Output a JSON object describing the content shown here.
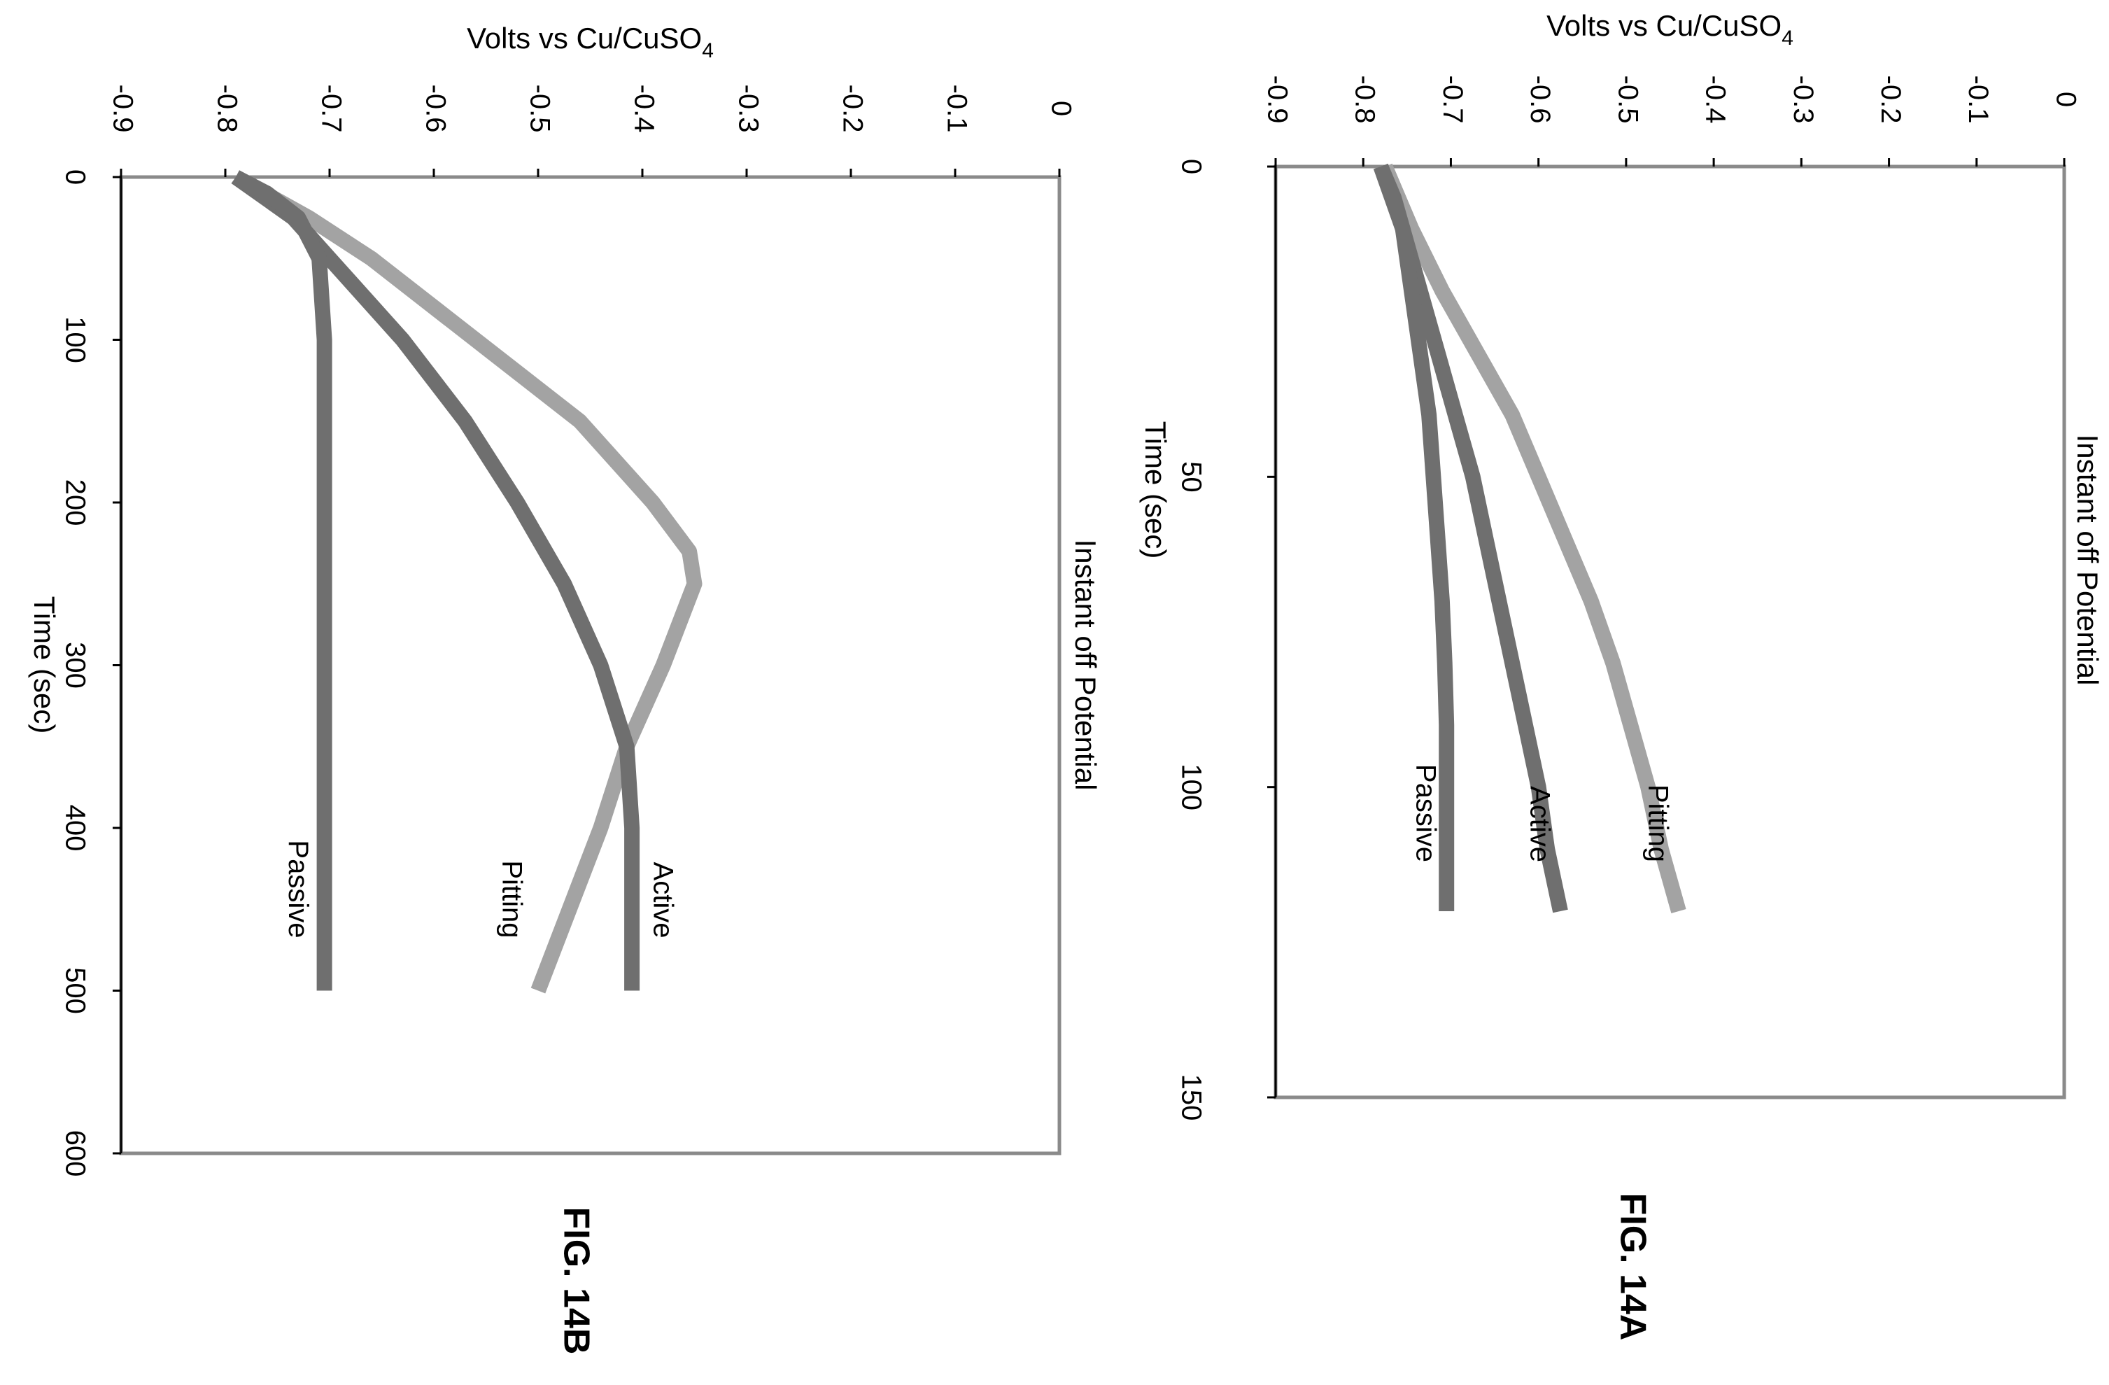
{
  "chart_data": [
    {
      "figure_label": "FIG. 14A",
      "type": "line",
      "title": "Instant off Potential",
      "xlabel": "Time (sec)",
      "ylabel": "Volts vs Cu/CuSO",
      "ylabel_subscript": "4",
      "xlim": [
        0,
        150
      ],
      "ylim": [
        -0.9,
        0
      ],
      "xticks": [
        0,
        50,
        100,
        150
      ],
      "xtick_labels": [
        "0",
        "50",
        "100",
        "150"
      ],
      "yticks": [
        -0.9,
        -0.8,
        -0.7,
        -0.6,
        -0.5,
        -0.4,
        -0.3,
        -0.2,
        -0.1,
        0
      ],
      "ytick_labels": [
        "-0.9",
        "-0.8",
        "-0.7",
        "-0.6",
        "-0.5",
        "-0.4",
        "-0.3",
        "-0.2",
        "-0.1",
        "0"
      ],
      "grid": false,
      "series": [
        {
          "name": "Pitting",
          "color": "#a3a3a3",
          "x": [
            0,
            10,
            20,
            30,
            40,
            50,
            60,
            70,
            80,
            90,
            100,
            110,
            120
          ],
          "y": [
            -0.775,
            -0.745,
            -0.71,
            -0.67,
            -0.63,
            -0.6,
            -0.57,
            -0.54,
            -0.515,
            -0.495,
            -0.475,
            -0.46,
            -0.44
          ]
        },
        {
          "name": "Active",
          "color": "#6f6f6f",
          "x": [
            0,
            10,
            20,
            30,
            40,
            50,
            60,
            70,
            80,
            90,
            100,
            110,
            120
          ],
          "y": [
            -0.78,
            -0.755,
            -0.735,
            -0.715,
            -0.695,
            -0.675,
            -0.66,
            -0.645,
            -0.63,
            -0.615,
            -0.6,
            -0.59,
            -0.575
          ]
        },
        {
          "name": "Passive",
          "color": "#6f6f6f",
          "x": [
            0,
            5,
            10,
            20,
            30,
            40,
            50,
            60,
            70,
            80,
            90,
            100,
            110,
            120
          ],
          "y": [
            -0.78,
            -0.765,
            -0.755,
            -0.745,
            -0.735,
            -0.725,
            -0.72,
            -0.715,
            -0.71,
            -0.707,
            -0.705,
            -0.705,
            -0.705,
            -0.705
          ]
        }
      ]
    },
    {
      "figure_label": "FIG. 14B",
      "type": "line",
      "title": "Instant off Potential",
      "xlabel": "Time (sec)",
      "ylabel": "Volts vs Cu/CuSO",
      "ylabel_subscript": "4",
      "xlim": [
        0,
        600
      ],
      "ylim": [
        -0.9,
        0
      ],
      "xticks": [
        0,
        100,
        200,
        300,
        400,
        500,
        600
      ],
      "xtick_labels": [
        "0",
        "100",
        "200",
        "300",
        "400",
        "500",
        "600"
      ],
      "yticks": [
        -0.9,
        -0.8,
        -0.7,
        -0.6,
        -0.5,
        -0.4,
        -0.3,
        -0.2,
        -0.1,
        0
      ],
      "ytick_labels": [
        "-0.9",
        "-0.8",
        "-0.7",
        "-0.6",
        "-0.5",
        "-0.4",
        "-0.3",
        "-0.2",
        "-0.1",
        "0"
      ],
      "grid": false,
      "series": [
        {
          "name": "Pitting",
          "color": "#a3a3a3",
          "x": [
            0,
            25,
            50,
            100,
            150,
            200,
            230,
            250,
            300,
            350,
            400,
            450,
            500
          ],
          "y": [
            -0.79,
            -0.72,
            -0.66,
            -0.56,
            -0.46,
            -0.39,
            -0.355,
            -0.35,
            -0.38,
            -0.415,
            -0.44,
            -0.47,
            -0.5
          ]
        },
        {
          "name": "Active",
          "color": "#6f6f6f",
          "x": [
            0,
            25,
            50,
            100,
            150,
            200,
            250,
            300,
            350,
            400,
            450,
            500
          ],
          "y": [
            -0.79,
            -0.735,
            -0.7,
            -0.63,
            -0.57,
            -0.52,
            -0.475,
            -0.44,
            -0.415,
            -0.41,
            -0.41,
            -0.41
          ]
        },
        {
          "name": "Passive",
          "color": "#6f6f6f",
          "x": [
            0,
            10,
            25,
            50,
            100,
            200,
            300,
            400,
            500
          ],
          "y": [
            -0.79,
            -0.76,
            -0.73,
            -0.71,
            -0.705,
            -0.705,
            -0.705,
            -0.705,
            -0.705
          ]
        }
      ]
    }
  ]
}
